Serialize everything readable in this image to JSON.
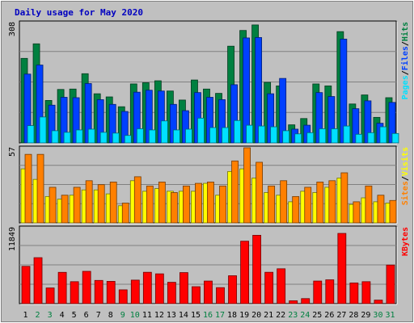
{
  "title": "Daily usage for May 2020",
  "colors": {
    "frame_bg": "#c0c0c0",
    "plot_bg": "#c0c0c0",
    "title": "#0000c0",
    "hits": "#008040",
    "files": "#0040ff",
    "pages": "#00e0ff",
    "visits": "#ffff00",
    "sites": "#ff8000",
    "kbytes": "#ff0000",
    "weekday_label": "#000000",
    "weekend_label": "#008040"
  },
  "chart_data": [
    {
      "type": "bar",
      "panel": "hits",
      "title": "Daily usage for May 2020",
      "ylabel_parts": [
        "Pages",
        "/",
        "Files",
        "/",
        "Hits"
      ],
      "ymax_label": "308",
      "ylim": [
        0,
        308
      ],
      "grid": true,
      "categories": [
        "1",
        "2",
        "3",
        "4",
        "5",
        "6",
        "7",
        "8",
        "9",
        "10",
        "11",
        "12",
        "13",
        "14",
        "15",
        "16",
        "17",
        "18",
        "19",
        "20",
        "21",
        "22",
        "23",
        "24",
        "25",
        "26",
        "27",
        "28",
        "29",
        "30",
        "31"
      ],
      "weekend_days": [
        "2",
        "3",
        "9",
        "10",
        "16",
        "17",
        "23",
        "24",
        "30",
        "31"
      ],
      "series": [
        {
          "name": "Hits",
          "values": [
            215,
            252,
            108,
            136,
            137,
            176,
            125,
            117,
            92,
            150,
            153,
            158,
            132,
            109,
            160,
            137,
            126,
            246,
            286,
            300,
            154,
            145,
            46,
            62,
            150,
            145,
            283,
            99,
            122,
            65,
            115
          ]
        },
        {
          "name": "Files",
          "values": [
            175,
            198,
            96,
            116,
            115,
            151,
            110,
            98,
            80,
            129,
            134,
            132,
            98,
            82,
            128,
            116,
            110,
            148,
            267,
            268,
            125,
            164,
            35,
            45,
            128,
            118,
            264,
            87,
            107,
            50,
            103
          ]
        },
        {
          "name": "Pages",
          "values": [
            44,
            66,
            31,
            27,
            33,
            35,
            27,
            25,
            19,
            36,
            33,
            56,
            33,
            35,
            63,
            39,
            39,
            57,
            45,
            43,
            41,
            31,
            23,
            26,
            36,
            36,
            43,
            22,
            26,
            41,
            24
          ]
        }
      ]
    },
    {
      "type": "bar",
      "panel": "visits",
      "ylabel_parts": [
        "Sites",
        "/",
        "Visits"
      ],
      "ymax_label": "57",
      "ylim": [
        0,
        57
      ],
      "grid": true,
      "categories": [
        "1",
        "2",
        "3",
        "4",
        "5",
        "6",
        "7",
        "8",
        "9",
        "10",
        "11",
        "12",
        "13",
        "14",
        "15",
        "16",
        "17",
        "18",
        "19",
        "20",
        "21",
        "22",
        "23",
        "24",
        "25",
        "26",
        "27",
        "28",
        "29",
        "30",
        "31"
      ],
      "series": [
        {
          "name": "Visits",
          "values": [
            41,
            33,
            20,
            18,
            21,
            25,
            25,
            22,
            13,
            32,
            24,
            26,
            24,
            24,
            24,
            30,
            21,
            39,
            41,
            34,
            23,
            21,
            16,
            24,
            23,
            27,
            34,
            14,
            19,
            16,
            15
          ]
        },
        {
          "name": "Sites",
          "values": [
            52,
            52,
            27,
            21,
            27,
            32,
            29,
            31,
            15,
            35,
            28,
            31,
            23,
            28,
            30,
            31,
            28,
            47,
            57,
            46,
            28,
            32,
            20,
            27,
            31,
            32,
            38,
            16,
            28,
            21,
            17
          ]
        }
      ]
    },
    {
      "type": "bar",
      "panel": "kbytes",
      "ylabel_parts": [
        "KBytes"
      ],
      "ymax_label": "11849",
      "ylim": [
        0,
        11849
      ],
      "grid": true,
      "categories": [
        "1",
        "2",
        "3",
        "4",
        "5",
        "6",
        "7",
        "8",
        "9",
        "10",
        "11",
        "12",
        "13",
        "14",
        "15",
        "16",
        "17",
        "18",
        "19",
        "20",
        "21",
        "22",
        "23",
        "24",
        "25",
        "26",
        "27",
        "28",
        "29",
        "30",
        "31"
      ],
      "series": [
        {
          "name": "KBytes",
          "values": [
            5950,
            7330,
            2500,
            4990,
            3500,
            5150,
            3700,
            3550,
            2200,
            3750,
            5000,
            4750,
            3400,
            4950,
            2700,
            3600,
            2550,
            4450,
            9960,
            10900,
            5000,
            5560,
            450,
            800,
            3600,
            3800,
            11200,
            3300,
            3500,
            560,
            6150
          ]
        }
      ]
    }
  ]
}
